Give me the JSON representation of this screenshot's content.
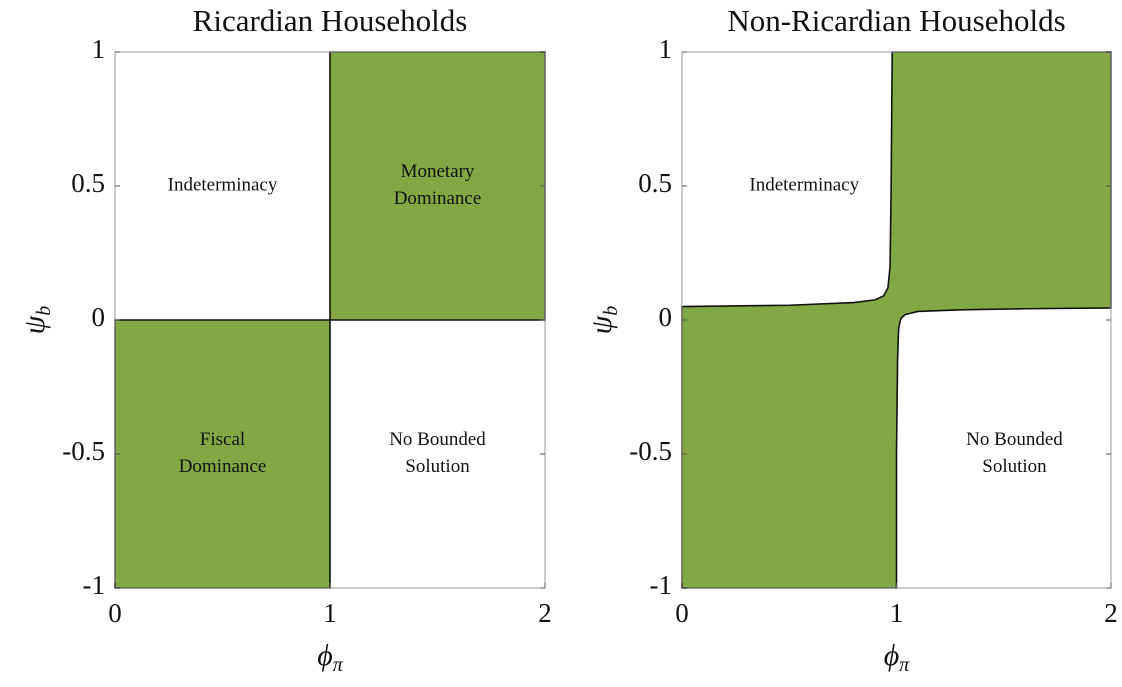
{
  "chart_data": [
    {
      "type": "region",
      "title": "Ricardian Households",
      "xlabel": {
        "symbol": "ϕ",
        "subscript": "π"
      },
      "ylabel": {
        "symbol": "ψ",
        "subscript": "b"
      },
      "xlim": [
        0,
        2
      ],
      "ylim": [
        -1,
        1
      ],
      "xticks": [
        0,
        1,
        2
      ],
      "yticks": [
        -1,
        -0.5,
        0,
        0.5,
        1
      ],
      "regions": [
        {
          "color": "#82a846",
          "x": [
            1,
            2,
            2,
            1
          ],
          "y": [
            0,
            0,
            1,
            1
          ]
        },
        {
          "color": "#82a846",
          "x": [
            0,
            1,
            1,
            0
          ],
          "y": [
            -1,
            -1,
            0,
            0
          ]
        }
      ],
      "annotations": [
        {
          "lines": [
            "Indeterminacy"
          ],
          "x": 0.5,
          "y": 0.5
        },
        {
          "lines": [
            "Monetary",
            "Dominance"
          ],
          "x": 1.5,
          "y": 0.5
        },
        {
          "lines": [
            "Fiscal",
            "Dominance"
          ],
          "x": 0.5,
          "y": -0.5
        },
        {
          "lines": [
            "No Bounded",
            "Solution"
          ],
          "x": 1.5,
          "y": -0.5
        }
      ]
    },
    {
      "type": "region",
      "title": "Non-Ricardian Households",
      "xlabel": {
        "symbol": "ϕ",
        "subscript": "π"
      },
      "ylabel": {
        "symbol": "ψ",
        "subscript": "b"
      },
      "xlim": [
        0,
        2
      ],
      "ylim": [
        -1,
        1
      ],
      "xticks": [
        0,
        1,
        2
      ],
      "yticks": [
        -1,
        -0.5,
        0,
        0.5,
        1
      ],
      "regions": [
        {
          "color": "#82a846",
          "x": [
            0,
            0,
            0.5,
            0.8,
            0.9,
            0.94,
            0.96,
            0.97,
            0.975,
            0.98,
            2,
            2,
            1.6,
            1.3,
            1.1,
            1.04,
            1.02,
            1.01,
            1.005,
            1.0,
            1.0
          ],
          "y": [
            -1,
            0.05,
            0.055,
            0.065,
            0.075,
            0.09,
            0.12,
            0.2,
            0.5,
            1,
            1,
            0.045,
            0.042,
            0.038,
            0.032,
            0.02,
            0.005,
            -0.03,
            -0.15,
            -0.5,
            -1
          ]
        }
      ],
      "annotations": [
        {
          "lines": [
            "Indeterminacy"
          ],
          "x": 0.57,
          "y": 0.5
        },
        {
          "lines": [
            "No Bounded",
            "Solution"
          ],
          "x": 1.55,
          "y": -0.5
        }
      ]
    }
  ]
}
